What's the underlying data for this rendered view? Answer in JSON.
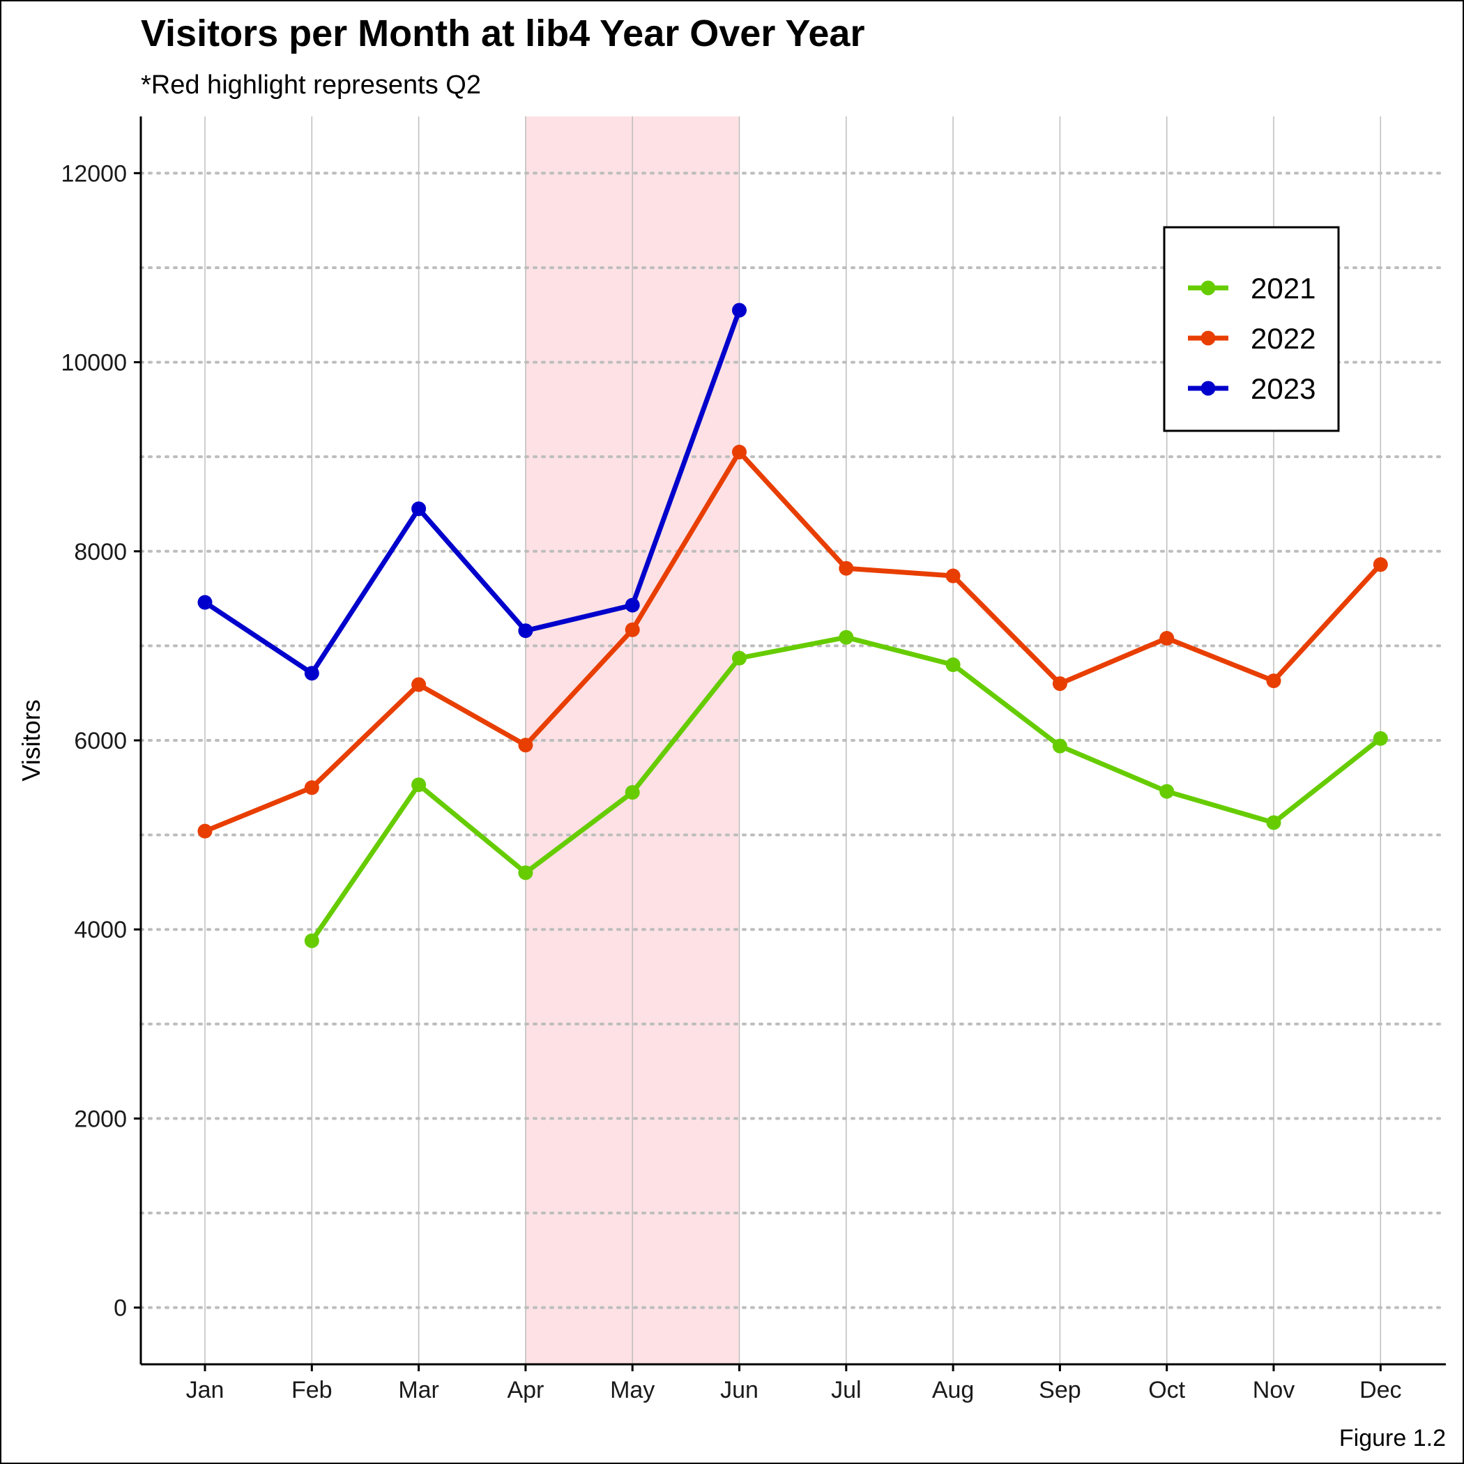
{
  "colors": {
    "highlight": "#fde1e4",
    "grid": "#bdbdbd",
    "axis": "#000000"
  },
  "chart_data": {
    "type": "line",
    "title": "Visitors per Month at lib4 Year Over Year",
    "subtitle": "*Red highlight represents Q2",
    "xlabel": "",
    "ylabel": "Visitors",
    "caption": "Figure 1.2",
    "categories": [
      "Jan",
      "Feb",
      "Mar",
      "Apr",
      "May",
      "Jun",
      "Jul",
      "Aug",
      "Sep",
      "Oct",
      "Nov",
      "Dec"
    ],
    "ylim": [
      -600,
      12600
    ],
    "yticks": [
      0,
      2000,
      4000,
      6000,
      8000,
      10000,
      12000
    ],
    "minor_gridlines": [
      1000,
      3000,
      5000,
      7000,
      9000,
      11000
    ],
    "grid": "vertical solid at each month, horizontal dotted every 1000",
    "highlight": {
      "from": "Apr",
      "to": "Jun",
      "meaning": "Q2"
    },
    "legend_position": "top-right",
    "series": [
      {
        "name": "2021",
        "color": "#66cc00",
        "values": [
          null,
          3880,
          5530,
          4600,
          5450,
          6870,
          7090,
          6800,
          5940,
          5460,
          5130,
          6020
        ]
      },
      {
        "name": "2022",
        "color": "#e83e00",
        "values": [
          5040,
          5500,
          6590,
          5950,
          7170,
          9050,
          7820,
          7740,
          6600,
          7080,
          6630,
          7860
        ]
      },
      {
        "name": "2023",
        "color": "#0000cc",
        "values": [
          7460,
          6710,
          8450,
          7160,
          7430,
          10550,
          null,
          null,
          null,
          null,
          null,
          null
        ]
      }
    ]
  }
}
